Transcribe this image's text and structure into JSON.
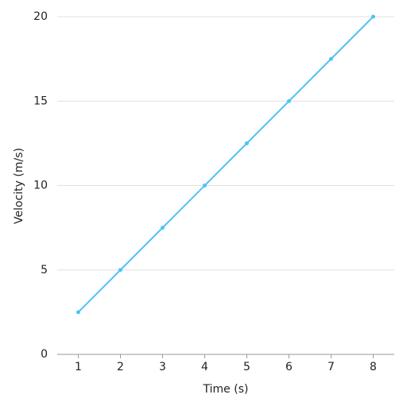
{
  "chart_data": {
    "type": "line",
    "x_label": "Time (s)",
    "y_label": "Velocity (m/s)",
    "x": [
      1,
      2,
      3,
      4,
      5,
      6,
      7,
      8
    ],
    "series": [
      {
        "name": "Velocity",
        "color": "#4fc3f7",
        "values": [
          2.5,
          5,
          7.5,
          10,
          12.5,
          15,
          17.5,
          20
        ]
      }
    ],
    "xlim": [
      0.5,
      8.5
    ],
    "xticks": [
      1,
      2,
      3,
      4,
      5,
      6,
      7,
      8
    ],
    "ylim": [
      0,
      20
    ],
    "yticks": [
      0,
      5,
      10,
      15,
      20
    ],
    "grid": true,
    "legend": false
  }
}
